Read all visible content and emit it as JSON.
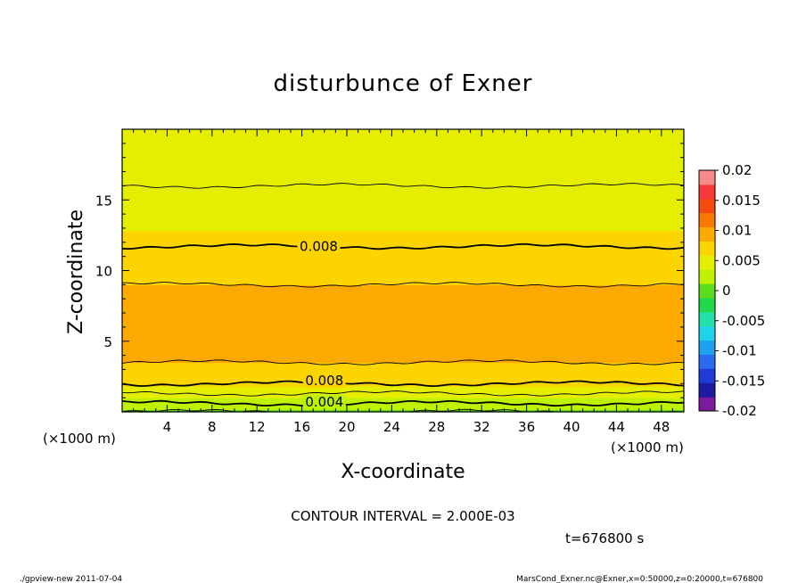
{
  "chart_data": {
    "type": "heatmap",
    "title": "disturbunce of Exner",
    "xlabel": "X-coordinate",
    "ylabel": "Z-coordinate",
    "x_unit_left": "(×1000 m)",
    "x_unit_right": "(×1000 m)",
    "xlim": [
      0,
      50
    ],
    "ylim": [
      0,
      20
    ],
    "x_ticks": [
      4,
      8,
      12,
      16,
      20,
      24,
      28,
      32,
      36,
      40,
      44,
      48
    ],
    "y_ticks": [
      5,
      10,
      15
    ],
    "profile_z": [
      0,
      0.6,
      1.3,
      2.0,
      3.0,
      4.0,
      5.5,
      7.0,
      9.0,
      11.7,
      14.0,
      16.0,
      18.0,
      20.0
    ],
    "profile_value": [
      0.002,
      0.004,
      0.006,
      0.008,
      0.0095,
      0.0105,
      0.011,
      0.0105,
      0.01,
      0.008,
      0.007,
      0.006,
      0.0055,
      0.005
    ],
    "contour_interval": 0.002,
    "contour_levels": [
      0.002,
      0.004,
      0.006,
      0.008,
      0.01,
      0.008,
      0.006
    ],
    "contour_label_texts": [
      {
        "text": "0.008",
        "x": 17.5,
        "z": 11.7
      },
      {
        "text": "0.008",
        "x": 18.0,
        "z": 2.2
      },
      {
        "text": "0.004",
        "x": 18.0,
        "z": 0.7
      }
    ],
    "colorbar": {
      "levels": [
        -0.02,
        -0.0175,
        -0.015,
        -0.0125,
        -0.01,
        -0.0075,
        -0.005,
        -0.0025,
        0,
        0.0025,
        0.005,
        0.0075,
        0.01,
        0.0125,
        0.015,
        0.0175,
        0.02
      ],
      "colors": [
        "#7b1a9a",
        "#1c1aa0",
        "#1f3bd6",
        "#2a6cf0",
        "#1fa0f0",
        "#1fd4e6",
        "#22e0a8",
        "#22d84a",
        "#5ddc1e",
        "#bef200",
        "#e6ee00",
        "#fcd400",
        "#fcaa00",
        "#f87800",
        "#f44a10",
        "#f63838",
        "#f98a8a"
      ],
      "tick_labels": [
        "0.02",
        "0.015",
        "0.01",
        "0.005",
        "0",
        "-0.005",
        "-0.01",
        "-0.015",
        "-0.02"
      ]
    },
    "contour_interval_text": "CONTOUR INTERVAL = 2.000E-03",
    "time_text": "t=676800 s",
    "footer_left": "./gpview-new   2011-07-04",
    "footer_right": "MarsCond_Exner.nc@Exner,x=0:50000,z=0:20000,t=676800"
  }
}
